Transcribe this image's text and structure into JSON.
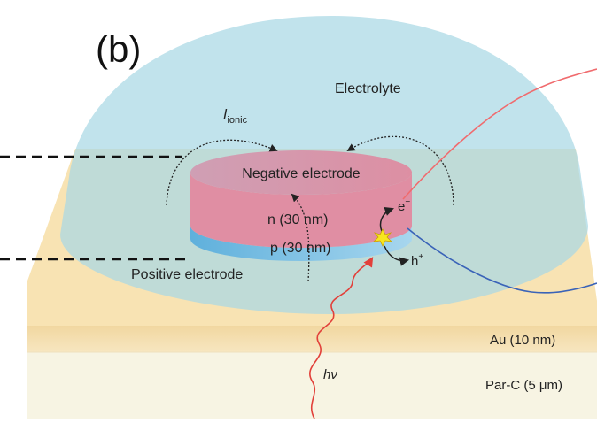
{
  "panel_label": "(b)",
  "labels": {
    "electrolyte": "Electrolyte",
    "i_ionic_main": "I",
    "i_ionic_sub": "ionic",
    "negative_electrode": "Negative electrode",
    "n_layer": "n (30 nm)",
    "p_layer": "p (30 nm)",
    "positive_electrode": "Positive electrode",
    "electron": "e",
    "electron_sup": "−",
    "hole": "h",
    "hole_sup": "+",
    "au_layer": "Au (10 nm)",
    "parc_layer": "Par-C (5 μm)",
    "photon_h": "h",
    "photon_nu": "ν"
  },
  "colors": {
    "substrate_top": "#f8e3b3",
    "substrate_au_band": "#f3d99f",
    "substrate_parc": "#f7f4e3",
    "electrolyte": "#b5dce6",
    "n_layer_top": "#d98fa2",
    "n_layer_side": "#e38ea3",
    "p_layer": "#7fbfe2",
    "red_wire": "#f06b6e",
    "blue_wire": "#3a63b8",
    "photon_wave": "#e2403a",
    "star": "#f7e51f"
  }
}
